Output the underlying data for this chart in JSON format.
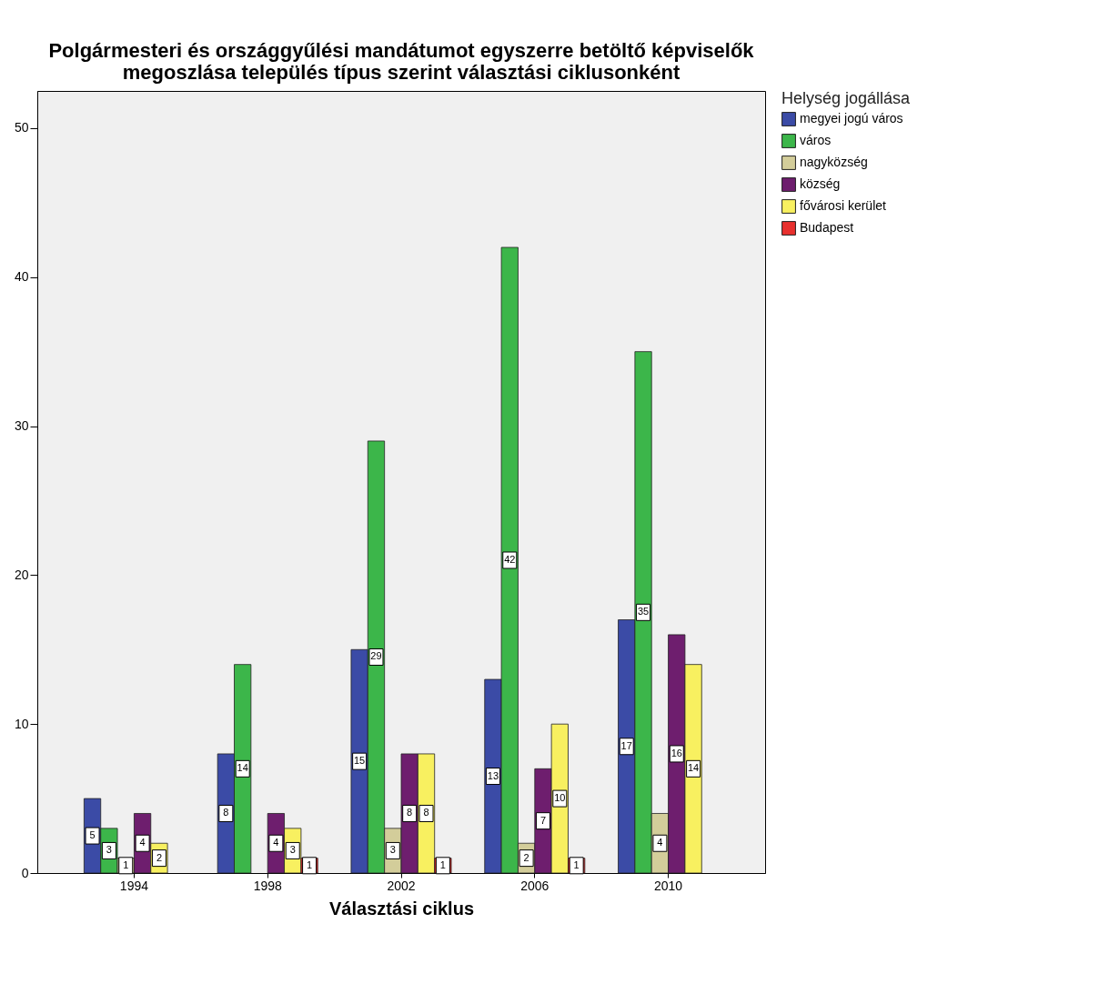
{
  "chart_data": {
    "type": "bar",
    "title": "Polgármesteri és országgyűlési mandátumot egyszerre betöltő képviselők\nmegoszlása település típus szerint választási ciklusonként",
    "xlabel": "Választási ciklus",
    "legend_title": "Helység jogállása",
    "categories": [
      "1994",
      "1998",
      "2002",
      "2006",
      "2010"
    ],
    "series": [
      {
        "name": "megyei jogú város",
        "color": "#3b4ba6",
        "values": [
          5,
          8,
          15,
          13,
          17
        ]
      },
      {
        "name": "város",
        "color": "#3cb64a",
        "values": [
          3,
          14,
          29,
          42,
          35
        ]
      },
      {
        "name": "nagyközség",
        "color": "#d3cd9a",
        "values": [
          1,
          null,
          3,
          2,
          4
        ]
      },
      {
        "name": "község",
        "color": "#6e1e6e",
        "values": [
          4,
          4,
          8,
          7,
          16
        ]
      },
      {
        "name": "fővárosi kerület",
        "color": "#f8f060",
        "values": [
          2,
          3,
          8,
          10,
          14
        ]
      },
      {
        "name": "Budapest",
        "color": "#e8302e",
        "values": [
          null,
          1,
          1,
          1,
          null
        ]
      }
    ],
    "ylim": [
      0,
      52.5
    ],
    "yticks": [
      0,
      10,
      20,
      30,
      40,
      50
    ],
    "data_labels": true,
    "grid": false,
    "legend": "top right"
  }
}
